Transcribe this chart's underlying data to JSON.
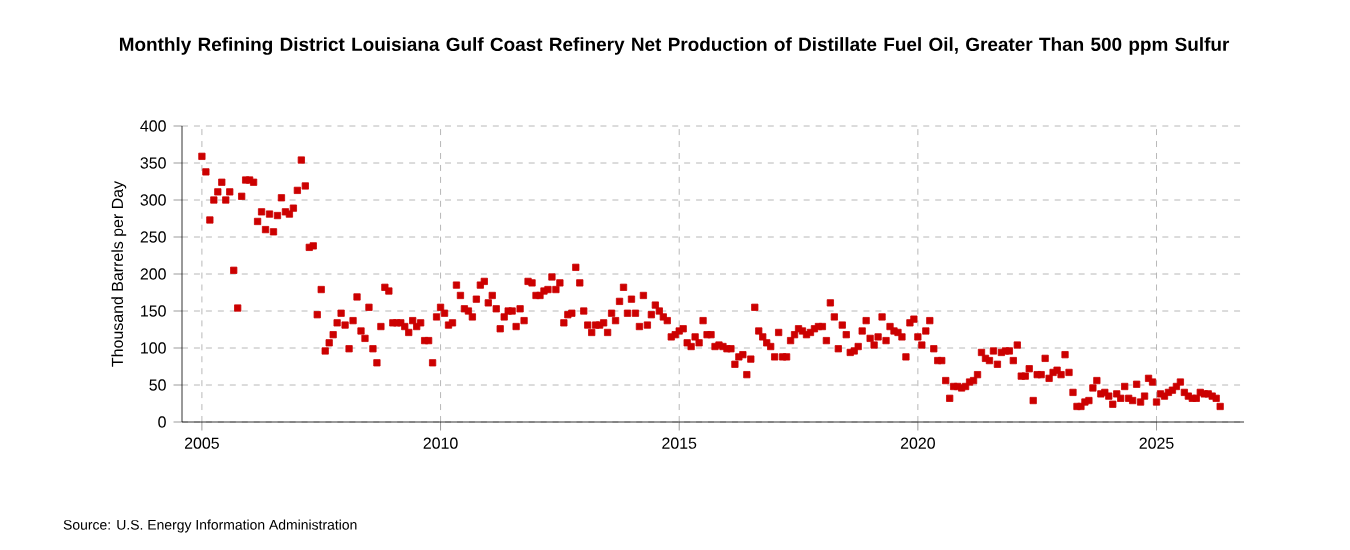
{
  "chart_data": {
    "type": "scatter",
    "title": "Monthly Refining District Louisiana Gulf Coast Refinery Net Production of Distillate Fuel Oil, Greater Than 500 ppm Sulfur",
    "ylabel": "Thousand Barrels per Day",
    "annotations": [
      "Source: U.S. Energy Information Administration"
    ],
    "color": "#cc0000",
    "marker": "square",
    "grid": true,
    "xlim": [
      "2004-08",
      "2026-11"
    ],
    "xticks": [
      "2005",
      "2010",
      "2015",
      "2020",
      "2025"
    ],
    "ylim": [
      0,
      400
    ],
    "yticks": [
      0,
      50,
      100,
      150,
      200,
      250,
      300,
      350,
      400
    ],
    "x": [
      "2005-01",
      "2005-02",
      "2005-03",
      "2005-04",
      "2005-05",
      "2005-06",
      "2005-07",
      "2005-08",
      "2005-09",
      "2005-10",
      "2005-11",
      "2005-12",
      "2006-01",
      "2006-02",
      "2006-03",
      "2006-04",
      "2006-05",
      "2006-06",
      "2006-07",
      "2006-08",
      "2006-09",
      "2006-10",
      "2006-11",
      "2006-12",
      "2007-01",
      "2007-02",
      "2007-03",
      "2007-04",
      "2007-05",
      "2007-06",
      "2007-07",
      "2007-08",
      "2007-09",
      "2007-10",
      "2007-11",
      "2007-12",
      "2008-01",
      "2008-02",
      "2008-03",
      "2008-04",
      "2008-05",
      "2008-06",
      "2008-07",
      "2008-08",
      "2008-09",
      "2008-10",
      "2008-11",
      "2008-12",
      "2009-01",
      "2009-02",
      "2009-03",
      "2009-04",
      "2009-05",
      "2009-06",
      "2009-07",
      "2009-08",
      "2009-09",
      "2009-10",
      "2009-11",
      "2009-12",
      "2010-01",
      "2010-02",
      "2010-03",
      "2010-04",
      "2010-05",
      "2010-06",
      "2010-07",
      "2010-08",
      "2010-09",
      "2010-10",
      "2010-11",
      "2010-12",
      "2011-01",
      "2011-02",
      "2011-03",
      "2011-04",
      "2011-05",
      "2011-06",
      "2011-07",
      "2011-08",
      "2011-09",
      "2011-10",
      "2011-11",
      "2011-12",
      "2012-01",
      "2012-02",
      "2012-03",
      "2012-04",
      "2012-05",
      "2012-06",
      "2012-07",
      "2012-08",
      "2012-09",
      "2012-10",
      "2012-11",
      "2012-12",
      "2013-01",
      "2013-02",
      "2013-03",
      "2013-04",
      "2013-05",
      "2013-06",
      "2013-07",
      "2013-08",
      "2013-09",
      "2013-10",
      "2013-11",
      "2013-12",
      "2014-01",
      "2014-02",
      "2014-03",
      "2014-04",
      "2014-05",
      "2014-06",
      "2014-07",
      "2014-08",
      "2014-09",
      "2014-10",
      "2014-11",
      "2014-12",
      "2015-01",
      "2015-02",
      "2015-03",
      "2015-04",
      "2015-05",
      "2015-06",
      "2015-07",
      "2015-08",
      "2015-09",
      "2015-10",
      "2015-11",
      "2015-12",
      "2016-01",
      "2016-02",
      "2016-03",
      "2016-04",
      "2016-05",
      "2016-06",
      "2016-07",
      "2016-08",
      "2016-09",
      "2016-10",
      "2016-11",
      "2016-12",
      "2017-01",
      "2017-02",
      "2017-03",
      "2017-04",
      "2017-05",
      "2017-06",
      "2017-07",
      "2017-08",
      "2017-09",
      "2017-10",
      "2017-11",
      "2017-12",
      "2018-01",
      "2018-02",
      "2018-03",
      "2018-04",
      "2018-05",
      "2018-06",
      "2018-07",
      "2018-08",
      "2018-09",
      "2018-10",
      "2018-11",
      "2018-12",
      "2019-01",
      "2019-02",
      "2019-03",
      "2019-04",
      "2019-05",
      "2019-06",
      "2019-07",
      "2019-08",
      "2019-09",
      "2019-10",
      "2019-11",
      "2019-12",
      "2020-01",
      "2020-02",
      "2020-03",
      "2020-04",
      "2020-05",
      "2020-06",
      "2020-07",
      "2020-08",
      "2020-09",
      "2020-10",
      "2020-11",
      "2020-12",
      "2021-01",
      "2021-02",
      "2021-03",
      "2021-04",
      "2021-05",
      "2021-06",
      "2021-07",
      "2021-08",
      "2021-09",
      "2021-10",
      "2021-11",
      "2021-12",
      "2022-01",
      "2022-02",
      "2022-03",
      "2022-04",
      "2022-05",
      "2022-06",
      "2022-07",
      "2022-08",
      "2022-09",
      "2022-10",
      "2022-11",
      "2022-12",
      "2023-01",
      "2023-02",
      "2023-03",
      "2023-04",
      "2023-05",
      "2023-06",
      "2023-07",
      "2023-08",
      "2023-09",
      "2023-10",
      "2023-11",
      "2023-12",
      "2024-01",
      "2024-02",
      "2024-03",
      "2024-04",
      "2024-05",
      "2024-06",
      "2024-07",
      "2024-08",
      "2024-09",
      "2024-10",
      "2024-11",
      "2024-12",
      "2025-01",
      "2025-02",
      "2025-03",
      "2025-04",
      "2025-05",
      "2025-06",
      "2025-07",
      "2025-08",
      "2025-09",
      "2025-10",
      "2025-11",
      "2025-12",
      "2026-01",
      "2026-02",
      "2026-03",
      "2026-04",
      "2026-05"
    ],
    "values": [
      359,
      338,
      273,
      300,
      311,
      324,
      300,
      311,
      205,
      154,
      305,
      327,
      327,
      324,
      271,
      284,
      260,
      281,
      257,
      279,
      303,
      284,
      281,
      289,
      313,
      354,
      319,
      236,
      238,
      145,
      179,
      96,
      107,
      118,
      134,
      147,
      131,
      99,
      137,
      169,
      123,
      113,
      155,
      99,
      80,
      129,
      182,
      177,
      134,
      134,
      134,
      129,
      121,
      137,
      129,
      134,
      110,
      110,
      80,
      142,
      155,
      147,
      131,
      134,
      185,
      171,
      153,
      150,
      142,
      166,
      185,
      190,
      161,
      171,
      153,
      126,
      142,
      150,
      150,
      129,
      153,
      137,
      190,
      188,
      171,
      171,
      177,
      179,
      196,
      179,
      188,
      134,
      145,
      147,
      209,
      188,
      150,
      131,
      121,
      131,
      131,
      134,
      121,
      147,
      137,
      163,
      182,
      147,
      166,
      147,
      129,
      171,
      131,
      145,
      158,
      150,
      142,
      137,
      115,
      118,
      123,
      126,
      107,
      102,
      115,
      107,
      137,
      118,
      118,
      102,
      104,
      102,
      99,
      99,
      78,
      88,
      91,
      64,
      85,
      155,
      123,
      115,
      107,
      102,
      88,
      121,
      88,
      88,
      110,
      118,
      126,
      123,
      118,
      121,
      126,
      129,
      129,
      110,
      161,
      142,
      99,
      131,
      118,
      94,
      96,
      102,
      123,
      137,
      113,
      104,
      115,
      142,
      110,
      129,
      123,
      121,
      115,
      88,
      134,
      139,
      115,
      104,
      123,
      137,
      99,
      83,
      83,
      56,
      32,
      48,
      48,
      46,
      48,
      54,
      56,
      64,
      94,
      86,
      83,
      96,
      78,
      94,
      96,
      96,
      83,
      104,
      62,
      62,
      72,
      29,
      64,
      64,
      86,
      59,
      67,
      70,
      64,
      91,
      67,
      40,
      21,
      21,
      27,
      29,
      46,
      56,
      38,
      40,
      35,
      24,
      38,
      32,
      48,
      32,
      29,
      51,
      27,
      35,
      59,
      54,
      27,
      38,
      35,
      40,
      43,
      48,
      54,
      40,
      35,
      32,
      32,
      40,
      38,
      38,
      35,
      32,
      21
    ]
  }
}
